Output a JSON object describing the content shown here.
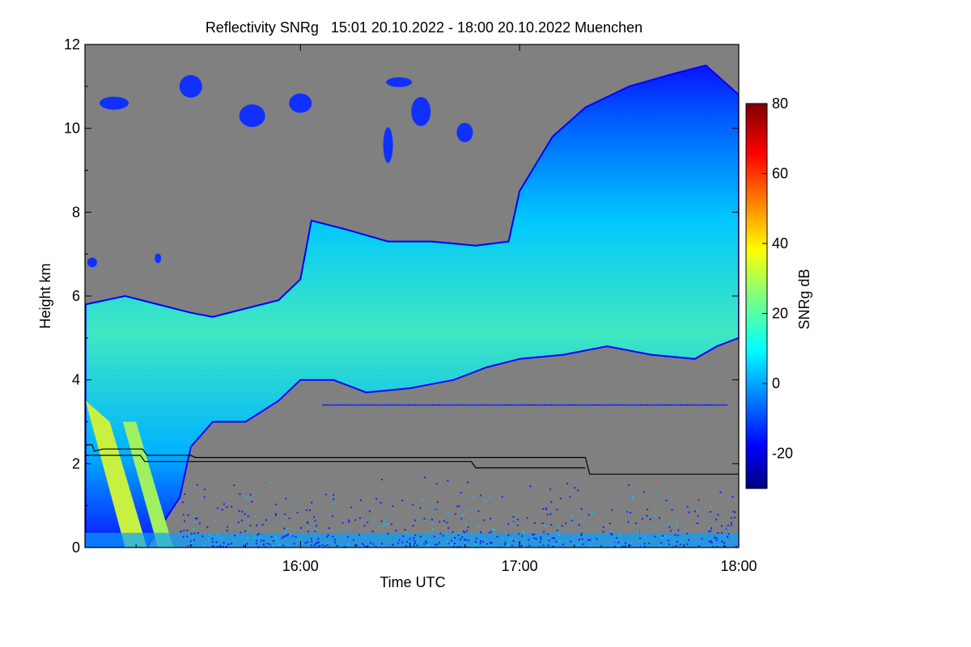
{
  "chart_data": {
    "type": "heatmap",
    "title": "Reflectivity SNRg   15:01 20.10.2022 - 18:00 20.10.2022 Muenchen",
    "xlabel": "Time UTC",
    "ylabel": "Height km",
    "x_range_hours": [
      15.017,
      18.0
    ],
    "y_range_km": [
      0,
      12
    ],
    "x_ticks": [
      {
        "label": "16:00",
        "value": 16.0
      },
      {
        "label": "17:00",
        "value": 17.0
      },
      {
        "label": "18:00",
        "value": 18.0
      }
    ],
    "y_ticks": [
      {
        "label": "0",
        "value": 0
      },
      {
        "label": "2",
        "value": 2
      },
      {
        "label": "4",
        "value": 4
      },
      {
        "label": "6",
        "value": 6
      },
      {
        "label": "8",
        "value": 8
      },
      {
        "label": "10",
        "value": 10
      },
      {
        "label": "12",
        "value": 12
      }
    ],
    "colorbar": {
      "label": "SNRg dB",
      "range": [
        -30,
        80
      ],
      "ticks": [
        {
          "label": "-20",
          "value": -20
        },
        {
          "label": "0",
          "value": 0
        },
        {
          "label": "20",
          "value": 20
        },
        {
          "label": "40",
          "value": 40
        },
        {
          "label": "60",
          "value": 60
        },
        {
          "label": "80",
          "value": 80
        }
      ],
      "colormap": "jet"
    },
    "no_signal_color": "#808080",
    "main_layer": {
      "description_hint": "cloud band",
      "top_km": [
        [
          15.02,
          5.8
        ],
        [
          15.2,
          6.0
        ],
        [
          15.35,
          5.8
        ],
        [
          15.5,
          5.6
        ],
        [
          15.6,
          5.5
        ],
        [
          15.75,
          5.7
        ],
        [
          15.9,
          5.9
        ],
        [
          16.0,
          6.4
        ],
        [
          16.05,
          7.8
        ],
        [
          16.2,
          7.6
        ],
        [
          16.4,
          7.3
        ],
        [
          16.6,
          7.3
        ],
        [
          16.8,
          7.2
        ],
        [
          16.95,
          7.3
        ],
        [
          17.0,
          8.5
        ],
        [
          17.15,
          9.8
        ],
        [
          17.3,
          10.5
        ],
        [
          17.5,
          11.0
        ],
        [
          17.7,
          11.3
        ],
        [
          17.85,
          11.5
        ],
        [
          18.0,
          10.8
        ]
      ],
      "base_km": [
        [
          15.02,
          0.0
        ],
        [
          15.3,
          0.0
        ],
        [
          15.45,
          1.2
        ],
        [
          15.5,
          2.4
        ],
        [
          15.6,
          3.0
        ],
        [
          15.75,
          3.0
        ],
        [
          15.9,
          3.5
        ],
        [
          16.0,
          4.0
        ],
        [
          16.15,
          4.0
        ],
        [
          16.3,
          3.7
        ],
        [
          16.5,
          3.8
        ],
        [
          16.7,
          4.0
        ],
        [
          16.85,
          4.3
        ],
        [
          17.0,
          4.5
        ],
        [
          17.2,
          4.6
        ],
        [
          17.4,
          4.8
        ],
        [
          17.6,
          4.6
        ],
        [
          17.8,
          4.5
        ],
        [
          17.9,
          4.8
        ],
        [
          18.0,
          5.0
        ]
      ],
      "peak_snr_db": 35
    },
    "lines": [
      {
        "points": [
          [
            15.02,
            2.45
          ],
          [
            15.05,
            2.45
          ],
          [
            15.06,
            2.3
          ],
          [
            15.1,
            2.35
          ],
          [
            15.28,
            2.35
          ],
          [
            15.3,
            2.2
          ],
          [
            15.5,
            2.2
          ],
          [
            15.52,
            2.15
          ],
          [
            17.3,
            2.15
          ],
          [
            17.32,
            1.75
          ],
          [
            18.0,
            1.75
          ]
        ]
      },
      {
        "points": [
          [
            15.02,
            2.2
          ],
          [
            15.27,
            2.2
          ],
          [
            15.29,
            2.05
          ],
          [
            16.78,
            2.05
          ],
          [
            16.8,
            1.9
          ],
          [
            17.3,
            1.9
          ]
        ]
      }
    ]
  }
}
